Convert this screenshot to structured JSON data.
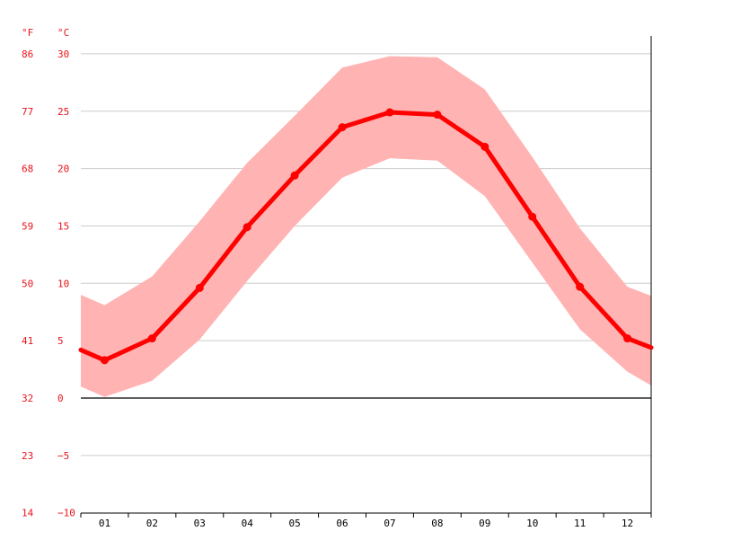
{
  "chart_data": {
    "type": "line",
    "title": "",
    "xlabel": "",
    "ylabel": "",
    "unit_f": "°F",
    "unit_c": "°C",
    "categories": [
      "01",
      "02",
      "03",
      "04",
      "05",
      "06",
      "07",
      "08",
      "09",
      "10",
      "11",
      "12"
    ],
    "y_ticks_c": [
      "30",
      "25",
      "20",
      "15",
      "10",
      "5",
      "0",
      "−5",
      "−10"
    ],
    "y_ticks_f": [
      "86",
      "77",
      "68",
      "59",
      "50",
      "41",
      "32",
      "23",
      "14"
    ],
    "y_tick_values_c": [
      30,
      25,
      20,
      15,
      10,
      5,
      0,
      -5,
      -10
    ],
    "ylim": [
      -10,
      31
    ],
    "grid": true,
    "series": [
      {
        "values": [
          3.3,
          5.2,
          9.6,
          14.9,
          19.4,
          23.6,
          24.9,
          24.7,
          21.9,
          15.8,
          9.7,
          5.2
        ]
      }
    ],
    "range_band": {
      "high": [
        8.1,
        10.6,
        15.4,
        20.5,
        24.6,
        28.8,
        29.8,
        29.7,
        26.9,
        21.0,
        14.8,
        9.7
      ],
      "low": [
        0.1,
        1.5,
        5.1,
        10.2,
        15.0,
        19.2,
        20.9,
        20.7,
        17.6,
        11.8,
        6.0,
        2.3
      ]
    },
    "edges": {
      "left_mean": 4.2,
      "right_mean": 4.4,
      "left_high": 9.0,
      "right_high": 8.9,
      "left_low": 1.0,
      "right_low": 1.1
    },
    "colors": {
      "line": "#ff0000",
      "band": "#ffb3b3",
      "label": "#e8141a",
      "grid": "#cccccc",
      "axis": "#000000"
    }
  }
}
